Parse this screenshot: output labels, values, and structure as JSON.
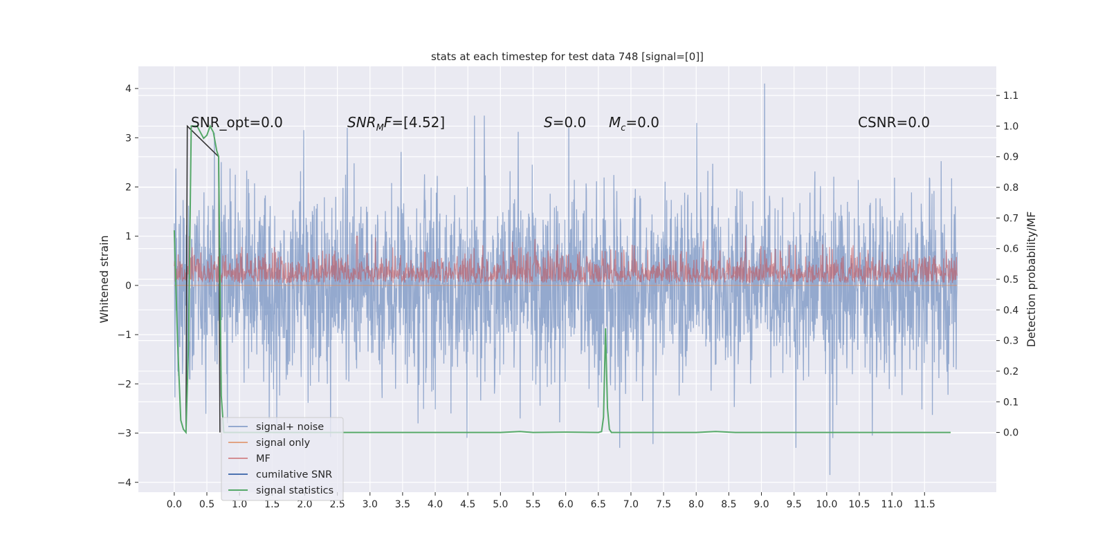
{
  "chart_data": {
    "type": "line",
    "title": "stats at each timestep for test data 748 [signal=[0]]",
    "xlabel": "",
    "ylabel": "Whitened strain",
    "y2label": "Detection probability/MF",
    "xlim": [
      -0.55,
      12.6
    ],
    "ylim": [
      -4.2,
      4.45
    ],
    "y2lim": [
      -0.195,
      1.195
    ],
    "xticks": [
      "0.0",
      "0.5",
      "1.0",
      "1.5",
      "2.0",
      "2.5",
      "3.0",
      "3.5",
      "4.0",
      "4.5",
      "5.0",
      "5.5",
      "6.0",
      "6.5",
      "7.0",
      "7.5",
      "8.0",
      "8.5",
      "9.0",
      "9.5",
      "10.0",
      "10.5",
      "11.0",
      "11.5"
    ],
    "yticks": [
      "−4",
      "−3",
      "−2",
      "−1",
      "0",
      "1",
      "2",
      "3",
      "4"
    ],
    "y2ticks": [
      "0.0",
      "0.1",
      "0.2",
      "0.3",
      "0.4",
      "0.5",
      "0.6",
      "0.7",
      "0.8",
      "0.9",
      "1.0",
      "1.1"
    ],
    "grid": true,
    "legend_position": "lower-left",
    "series": [
      {
        "name": "signal+ noise",
        "axis": "left",
        "color": "#4c72b0",
        "x_range": [
          0.0,
          12.0
        ],
        "y_range_approx": [
          -3.85,
          4.1
        ],
        "notable_peaks": [
          [
            2.65,
            3.2
          ],
          [
            4.6,
            3.45
          ],
          [
            4.75,
            3.45
          ],
          [
            6.05,
            3.2
          ],
          [
            9.05,
            4.1
          ],
          [
            10.05,
            -3.85
          ],
          [
            10.7,
            -3.05
          ]
        ]
      },
      {
        "name": "signal only",
        "axis": "left",
        "color": "#dd8452",
        "values_note": "zero throughout (signal=[0])"
      },
      {
        "name": "MF",
        "axis": "left",
        "color": "#c44e52",
        "x_range": [
          0.0,
          12.0
        ],
        "y_range_approx": [
          0.0,
          1.0
        ]
      },
      {
        "name": "cumilative SNR",
        "axis": "right",
        "color": "#4c72b0",
        "x": [
          0.18,
          0.2,
          0.68,
          0.7
        ],
        "y": [
          0.0,
          1.0,
          0.9,
          0.0
        ]
      },
      {
        "name": "signal statistics",
        "axis": "right",
        "color": "#55a868",
        "x": [
          0.0,
          0.05,
          0.1,
          0.14,
          0.18,
          0.22,
          0.26,
          0.3,
          0.35,
          0.4,
          0.45,
          0.5,
          0.55,
          0.6,
          0.65,
          0.68,
          0.72,
          0.76,
          0.8,
          1.0,
          2.0,
          3.0,
          4.0,
          5.0,
          5.3,
          5.5,
          6.0,
          6.5,
          6.55,
          6.58,
          6.61,
          6.64,
          6.67,
          6.7,
          6.8,
          7.0,
          8.0,
          8.3,
          8.6,
          9.0,
          10.0,
          11.0,
          11.5,
          11.9
        ],
        "y": [
          0.66,
          0.3,
          0.04,
          0.01,
          0.0,
          0.3,
          1.0,
          1.0,
          1.0,
          0.98,
          0.96,
          0.97,
          1.0,
          0.98,
          0.92,
          0.9,
          0.12,
          0.0,
          0.0,
          0.0,
          0.0,
          0.0,
          0.0,
          0.0,
          0.003,
          0.0,
          0.001,
          0.0,
          0.003,
          0.05,
          0.34,
          0.08,
          0.01,
          0.0,
          0.0,
          0.0,
          0.0,
          0.003,
          0.0,
          0.0,
          0.0,
          0.0,
          0.0,
          0.0
        ]
      }
    ],
    "annotations": [
      {
        "text": "SNR_opt=0.0",
        "x": 0.2,
        "y": 3.2
      },
      {
        "text": "SNRMF=[4.52]",
        "x": 2.6,
        "y": 3.2
      },
      {
        "text": "S=0.0",
        "x": 5.6,
        "y": 3.2
      },
      {
        "text": "Mc=0.0",
        "x": 6.6,
        "y": 3.2
      },
      {
        "text": "CSNR=0.0",
        "x": 10.4,
        "y": 3.2
      }
    ]
  },
  "legend": {
    "items": [
      {
        "label": "signal+ noise",
        "color": "#4c72b0"
      },
      {
        "label": "signal only",
        "color": "#dd8452"
      },
      {
        "label": "MF",
        "color": "#c44e52"
      },
      {
        "label": "cumilative SNR",
        "color": "#4c72b0"
      },
      {
        "label": "signal statistics",
        "color": "#55a868"
      }
    ]
  },
  "annotation_parts": {
    "snr_opt": "SNR_opt=0.0",
    "snrmf_base": "SNR",
    "snrmf_sub": "M",
    "snrmf_rest": "F=[4.52]",
    "s_sym": "S",
    "s_rest": "=0.0",
    "mc_sym": "M",
    "mc_sub": "c",
    "mc_rest": "=0.0",
    "csnr": "CSNR=0.0"
  }
}
